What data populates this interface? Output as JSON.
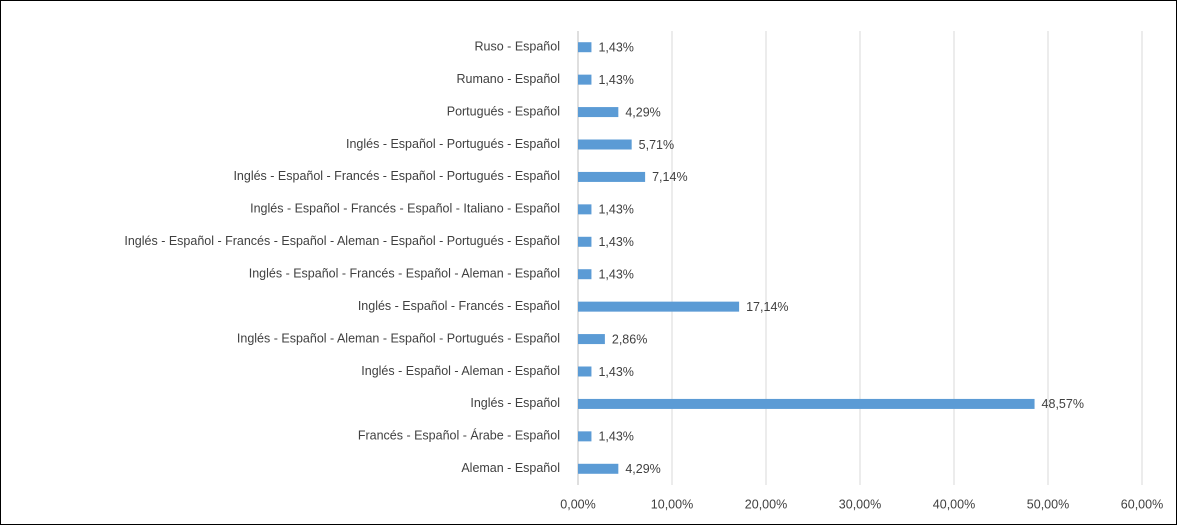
{
  "chart_data": {
    "type": "bar",
    "orientation": "horizontal",
    "categories": [
      "Ruso - Español",
      "Rumano - Español",
      "Portugués - Español",
      "Inglés - Español - Portugués - Español",
      "Inglés - Español - Francés - Español - Portugués - Español",
      "Inglés - Español - Francés - Español - Italiano - Español",
      "Inglés - Español - Francés - Español - Aleman - Español - Portugués - Español",
      "Inglés - Español - Francés - Español - Aleman - Español",
      "Inglés - Español - Francés - Español",
      "Inglés - Español - Aleman - Español - Portugués - Español",
      "Inglés - Español - Aleman - Español",
      "Inglés - Español",
      "Francés - Español - Árabe - Español",
      "Aleman - Español"
    ],
    "values": [
      1.43,
      1.43,
      4.29,
      5.71,
      7.14,
      1.43,
      1.43,
      1.43,
      17.14,
      2.86,
      1.43,
      48.57,
      1.43,
      4.29
    ],
    "value_labels": [
      "1,43%",
      "1,43%",
      "4,29%",
      "5,71%",
      "7,14%",
      "1,43%",
      "1,43%",
      "1,43%",
      "17,14%",
      "2,86%",
      "1,43%",
      "48,57%",
      "1,43%",
      "4,29%"
    ],
    "color": "#5b9bd5",
    "xlim": [
      0,
      60
    ],
    "xticks": [
      {
        "value": 0,
        "label": "0,00%"
      },
      {
        "value": 10,
        "label": "10,00%"
      },
      {
        "value": 20,
        "label": "20,00%"
      },
      {
        "value": 30,
        "label": "30,00%"
      },
      {
        "value": 40,
        "label": "40,00%"
      },
      {
        "value": 50,
        "label": "50,00%"
      },
      {
        "value": 60,
        "label": "60,00%"
      }
    ],
    "grid": true
  }
}
